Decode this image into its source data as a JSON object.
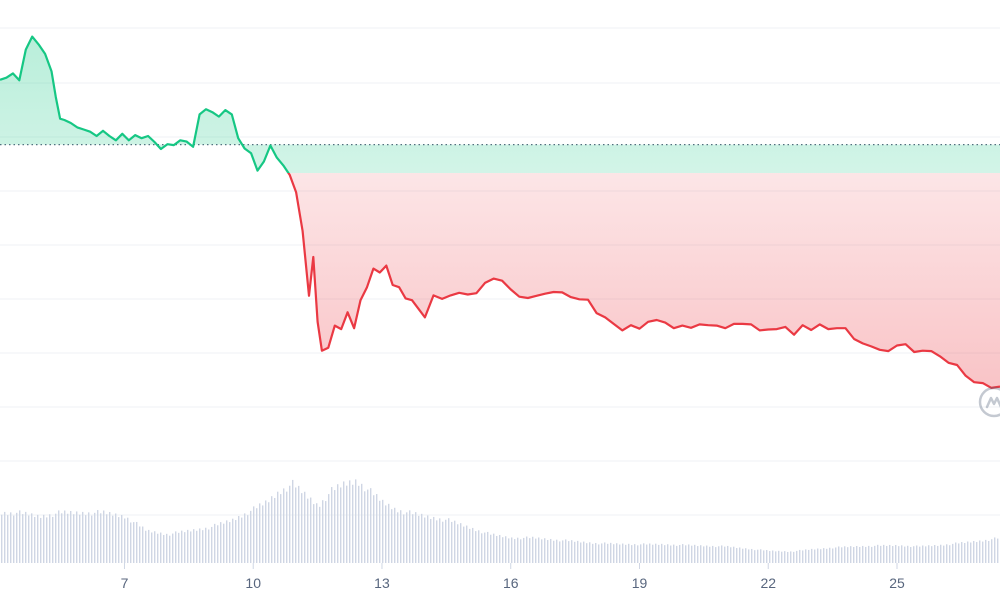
{
  "chart_data": {
    "type": "line",
    "title": "",
    "xlabel": "",
    "ylabel": "",
    "x_ticks": [
      "7",
      "10",
      "13",
      "16",
      "19",
      "22",
      "25"
    ],
    "x_range": [
      4.1,
      27.4
    ],
    "y_range": [
      0,
      100
    ],
    "gridlines": true,
    "baseline": 73,
    "colors": {
      "up": "#16c784",
      "down": "#ea3943",
      "grid": "#eff2f5",
      "baseline": "#58667e",
      "volume": "#cfd6e4",
      "axis_text": "#58667e"
    },
    "price_series": {
      "x": [
        4.1,
        4.25,
        4.4,
        4.55,
        4.7,
        4.85,
        5.0,
        5.15,
        5.3,
        5.4,
        5.5,
        5.6,
        5.75,
        5.9,
        6.05,
        6.2,
        6.35,
        6.5,
        6.65,
        6.8,
        6.95,
        7.1,
        7.25,
        7.4,
        7.55,
        7.7,
        7.85,
        8.0,
        8.15,
        8.3,
        8.45,
        8.6,
        8.75,
        8.9,
        9.05,
        9.2,
        9.35,
        9.5,
        9.65,
        9.8,
        9.95,
        10.1,
        10.25,
        10.4,
        10.55,
        10.7,
        10.85,
        11.0,
        11.15,
        11.3,
        11.4,
        11.5,
        11.6,
        11.75,
        11.9,
        12.05,
        12.2,
        12.35,
        12.5,
        12.65,
        12.8,
        12.95,
        13.1,
        13.25,
        13.4,
        13.55,
        13.7,
        13.85,
        14.0,
        14.2,
        14.4,
        14.6,
        14.8,
        15.0,
        15.2,
        15.4,
        15.6,
        15.8,
        16.0,
        16.2,
        16.4,
        16.6,
        16.8,
        17.0,
        17.2,
        17.4,
        17.6,
        17.8,
        18.0,
        18.2,
        18.4,
        18.6,
        18.8,
        19.0,
        19.2,
        19.4,
        19.6,
        19.8,
        20.0,
        20.2,
        20.4,
        20.6,
        20.8,
        21.0,
        21.2,
        21.4,
        21.6,
        21.8,
        22.0,
        22.2,
        22.4,
        22.6,
        22.8,
        23.0,
        23.2,
        23.4,
        23.6,
        23.8,
        24.0,
        24.2,
        24.4,
        24.6,
        24.8,
        25.0,
        25.2,
        25.4,
        25.6,
        25.8,
        26.0,
        26.2,
        26.4,
        26.6,
        26.8,
        27.0,
        27.2,
        27.4
      ],
      "y": [
        88.0,
        88.5,
        89.5,
        87.9,
        95.0,
        98.0,
        96.2,
        94.0,
        90.0,
        84.0,
        79.0,
        78.7,
        78.0,
        77.0,
        76.5,
        76.0,
        75.0,
        76.2,
        75.0,
        74.0,
        75.5,
        74.0,
        75.2,
        74.5,
        75.0,
        73.6,
        72.0,
        73.1,
        72.9,
        74.0,
        73.7,
        72.5,
        80.0,
        81.2,
        80.5,
        79.5,
        81.0,
        80.0,
        74.5,
        72.1,
        71.0,
        67.0,
        69.1,
        72.8,
        70.0,
        68.2,
        66.0,
        62.0,
        53.0,
        38.0,
        47.0,
        32.0,
        25.3,
        26.0,
        31.1,
        30.3,
        34.2,
        30.5,
        37.0,
        40.0,
        44.3,
        43.4,
        45.0,
        40.5,
        40.0,
        37.4,
        37.0,
        35.0,
        33.0,
        38.1,
        37.3,
        38.1,
        38.7,
        38.3,
        38.6,
        41.0,
        42.0,
        41.5,
        39.5,
        37.8,
        37.5,
        38.0,
        38.5,
        38.9,
        38.8,
        37.7,
        37.2,
        37.1,
        34.0,
        33.0,
        31.5,
        30.0,
        31.2,
        30.4,
        32.0,
        32.4,
        31.8,
        30.5,
        31.1,
        30.6,
        31.4,
        31.2,
        31.1,
        30.5,
        31.5,
        31.5,
        31.4,
        30.0,
        30.2,
        30.3,
        30.8,
        29.0,
        31.2,
        30.1,
        31.4,
        30.3,
        30.5,
        30.5,
        28.0,
        27.0,
        26.3,
        25.5,
        25.2,
        26.5,
        26.8,
        25.0,
        25.3,
        25.2,
        24.0,
        22.5,
        22.0,
        19.5,
        18.0,
        17.8,
        16.7,
        17.0
      ]
    },
    "volume_series": {
      "x": [
        4.1,
        4.5,
        5.0,
        5.5,
        6.0,
        6.5,
        7.0,
        7.5,
        8.0,
        8.5,
        9.0,
        9.5,
        10.0,
        10.3,
        10.6,
        10.9,
        11.2,
        11.5,
        11.8,
        12.1,
        12.4,
        12.7,
        13.0,
        13.3,
        13.6,
        14.0,
        14.5,
        15.0,
        15.5,
        16.0,
        16.5,
        17.0,
        17.5,
        18.0,
        18.5,
        19.0,
        19.5,
        20.0,
        20.5,
        21.0,
        21.5,
        22.0,
        22.5,
        23.0,
        23.5,
        24.0,
        24.5,
        25.0,
        25.5,
        26.0,
        26.5,
        27.0,
        27.4
      ],
      "y": [
        14,
        14,
        13,
        14,
        14,
        14,
        13,
        9,
        8,
        9,
        10,
        12,
        15,
        17,
        20,
        22,
        19,
        16,
        20,
        22,
        23,
        20,
        17,
        15,
        14,
        13,
        12,
        10,
        8,
        7,
        7,
        6.5,
        6,
        5.5,
        5.3,
        5.2,
        5.2,
        5.0,
        4.8,
        4.6,
        4.0,
        3.4,
        3.2,
        3.8,
        4.3,
        4.6,
        4.8,
        4.9,
        4.6,
        5.0,
        5.6,
        6.3,
        7.0
      ]
    }
  }
}
